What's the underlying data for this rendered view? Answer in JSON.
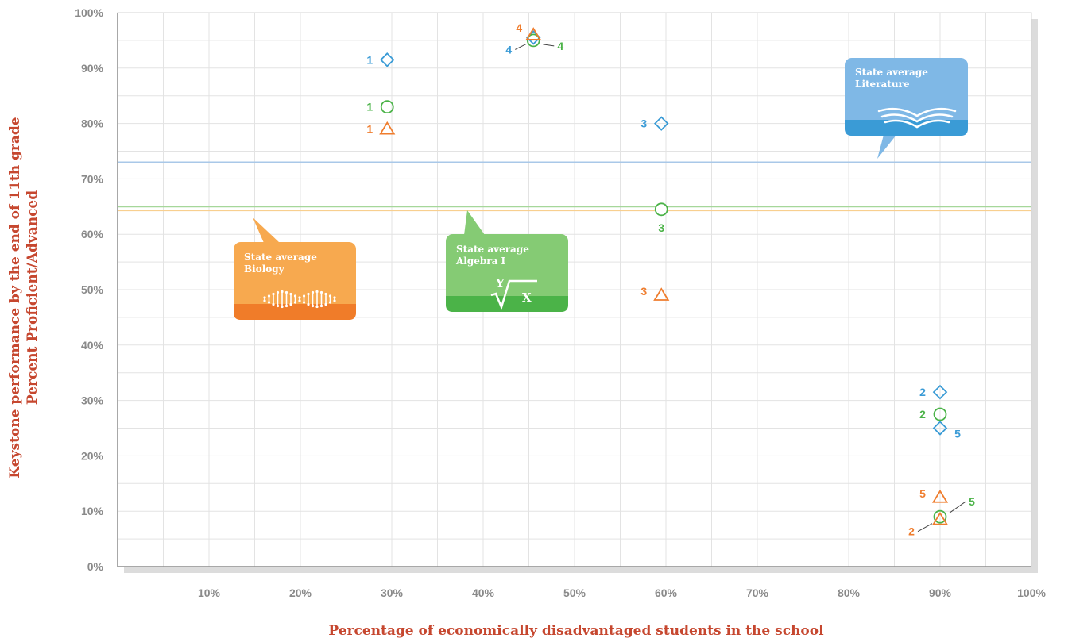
{
  "chart_data": {
    "type": "scatter",
    "xlabel": "Percentage of economically disadvantaged students in the school",
    "ylabel_lines": [
      "Keystone performance by the end of 11th grade",
      "Percent Proficient/Advanced"
    ],
    "xlim": [
      0,
      100
    ],
    "ylim": [
      0,
      100
    ],
    "x_ticks": [
      "10%",
      "20%",
      "30%",
      "40%",
      "50%",
      "60%",
      "70%",
      "80%",
      "90%",
      "100%"
    ],
    "y_ticks": [
      "0%",
      "10%",
      "20%",
      "30%",
      "40%",
      "50%",
      "60%",
      "70%",
      "80%",
      "90%",
      "100%"
    ],
    "grid": true,
    "series": [
      {
        "subject": "Literature",
        "marker": "diamond",
        "color": "#3a9bd6",
        "points": [
          {
            "label": "1",
            "x": 29.5,
            "y": 91.5
          },
          {
            "label": "2",
            "x": 90,
            "y": 31.5
          },
          {
            "label": "3",
            "x": 59.5,
            "y": 80
          },
          {
            "label": "4",
            "x": 45.5,
            "y": 95.5
          },
          {
            "label": "5",
            "x": 90,
            "y": 25
          }
        ]
      },
      {
        "subject": "Algebra I",
        "marker": "circle",
        "color": "#4bb348",
        "points": [
          {
            "label": "1",
            "x": 29.5,
            "y": 83
          },
          {
            "label": "2",
            "x": 90,
            "y": 27.5
          },
          {
            "label": "3",
            "x": 59.5,
            "y": 64.5
          },
          {
            "label": "4",
            "x": 45.5,
            "y": 95
          },
          {
            "label": "5",
            "x": 90,
            "y": 9
          }
        ]
      },
      {
        "subject": "Biology",
        "marker": "triangle",
        "color": "#ef7d2e",
        "points": [
          {
            "label": "1",
            "x": 29.5,
            "y": 79
          },
          {
            "label": "2",
            "x": 90,
            "y": 8.5
          },
          {
            "label": "3",
            "x": 59.5,
            "y": 49
          },
          {
            "label": "4",
            "x": 45.5,
            "y": 96
          },
          {
            "label": "5",
            "x": 90,
            "y": 12.5
          }
        ]
      }
    ],
    "reference_lines": [
      {
        "name": "State average Literature",
        "y": 73,
        "color": "#a9c8e8"
      },
      {
        "name": "State average Algebra I",
        "y": 65,
        "color": "#a6d79a"
      },
      {
        "name": "State average Biology",
        "y": 64.3,
        "color": "#f8cf8f"
      }
    ]
  },
  "callouts": {
    "literature": {
      "line1": "State average",
      "line2": "Literature",
      "icon": "open-book-icon",
      "top_color": "#7fb8e6",
      "band_color": "#3a9bd6"
    },
    "algebra": {
      "line1": "State average",
      "line2": "Algebra I",
      "icon_top": "Y",
      "icon_bottom": "X",
      "icon": "root-formula-icon",
      "top_color": "#85cb74",
      "band_color": "#4bb348"
    },
    "biology": {
      "line1": "State average",
      "line2": "Biology",
      "icon": "dna-icon",
      "top_color": "#f7a94f",
      "band_color": "#f07c29"
    }
  }
}
